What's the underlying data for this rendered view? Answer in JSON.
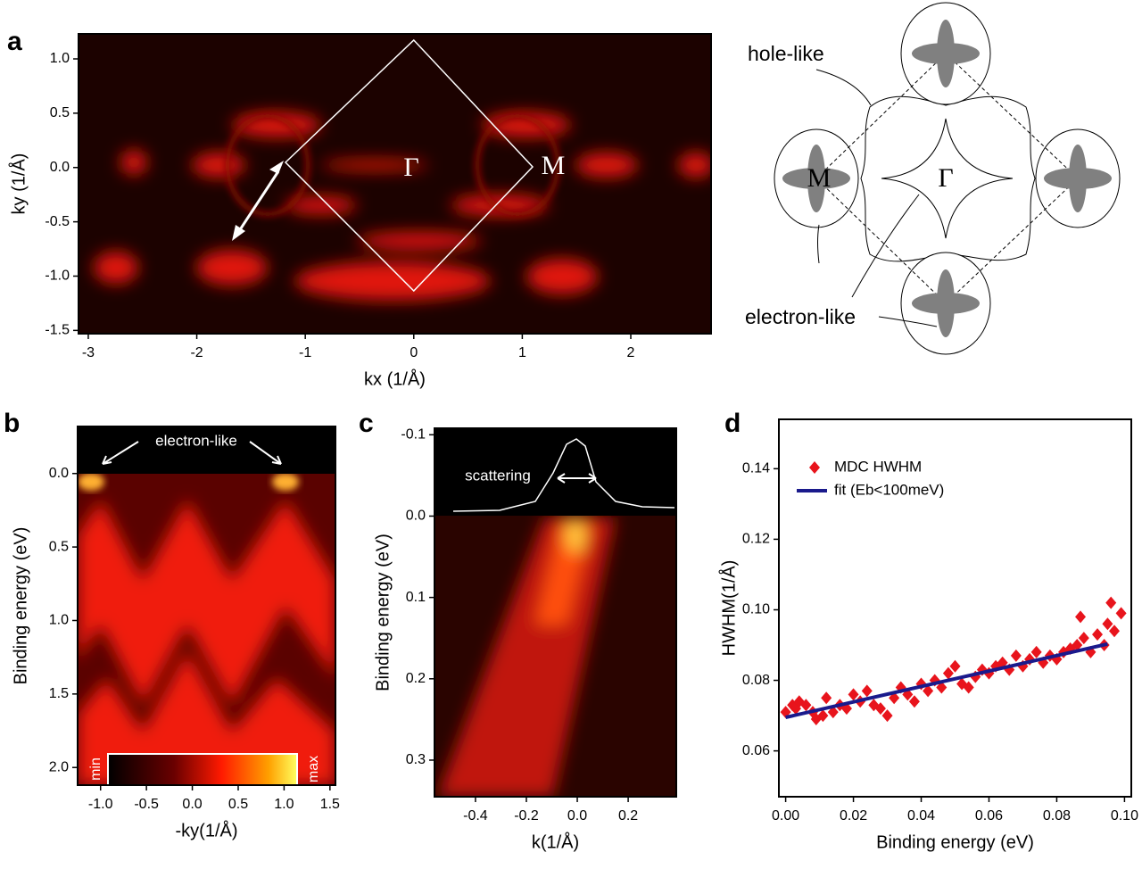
{
  "chart_data": [
    {
      "type": "heatmap",
      "panel_label": "a",
      "xlabel": "kx (1/Å)",
      "ylabel": "ky (1/Å)",
      "xlim": [
        -3.09,
        2.74
      ],
      "ylim": [
        -1.53,
        1.23
      ],
      "xticks": [
        -3,
        -2,
        -1,
        0,
        1,
        2
      ],
      "yticks": [
        {
          "value": 1.0,
          "label": "1.0"
        },
        {
          "value": 0.5,
          "label": "0.5"
        },
        {
          "value": 0.0,
          "label": "0.0"
        },
        {
          "value": -0.5,
          "label": "-0.5"
        },
        {
          "value": -1.0,
          "label": "-1.0"
        },
        {
          "value": -1.5,
          "label": "-1.5"
        }
      ],
      "annotations": [
        "Γ",
        "M"
      ]
    },
    {
      "type": "heatmap",
      "panel_label": "b",
      "xlabel": "-ky(1/Å)",
      "ylabel": "Binding energy (eV)",
      "xlim": [
        -1.25,
        1.56
      ],
      "ylim": [
        2.12,
        -0.32
      ],
      "xticks": [
        {
          "value": -1.0,
          "label": "-1.0"
        },
        {
          "value": -0.5,
          "label": "-0.5"
        },
        {
          "value": 0.0,
          "label": "0.0"
        },
        {
          "value": 0.5,
          "label": "0.5"
        },
        {
          "value": 1.0,
          "label": "1.0"
        },
        {
          "value": 1.5,
          "label": "1.5"
        }
      ],
      "yticks": [
        {
          "value": 0.0,
          "label": "0.0"
        },
        {
          "value": 0.5,
          "label": "0.5"
        },
        {
          "value": 1.0,
          "label": "1.0"
        },
        {
          "value": 1.5,
          "label": "1.5"
        },
        {
          "value": 2.0,
          "label": "2.0"
        }
      ],
      "annotations": [
        "electron-like"
      ],
      "colorbar_labels": [
        "min",
        "max"
      ]
    },
    {
      "type": "heatmap",
      "panel_label": "c",
      "xlabel": "k(1/Å)",
      "ylabel": "Binding energy (eV)",
      "xlim": [
        -0.561,
        0.389
      ],
      "ylim": [
        0.345,
        -0.108
      ],
      "xticks": [
        {
          "value": -0.4,
          "label": "-0.4"
        },
        {
          "value": -0.2,
          "label": "-0.2"
        },
        {
          "value": 0.0,
          "label": "0.0"
        },
        0.2
      ],
      "yticks": [
        -0.1,
        {
          "value": 0.0,
          "label": "0.0"
        },
        0.1,
        0.2,
        0.3
      ],
      "annotations": [
        "scattering"
      ]
    },
    {
      "type": "scatter",
      "panel_label": "d",
      "xlabel": "Binding energy (eV)",
      "ylabel": "HWHM(1/Å)",
      "xlim": [
        -0.002,
        0.102
      ],
      "ylim": [
        0.047,
        0.154
      ],
      "xticks": [
        {
          "value": 0.0,
          "label": "0.00"
        },
        0.02,
        0.04,
        0.06,
        0.08,
        {
          "value": 0.1,
          "label": "0.10"
        }
      ],
      "yticks": [
        0.06,
        0.08,
        {
          "value": 0.1,
          "label": "0.10"
        },
        0.12,
        0.14
      ],
      "legend": "upper left",
      "series": [
        {
          "name": "MDC HWHM",
          "color": "#e8141c",
          "marker": "diamond",
          "x": [
            0.0,
            0.002,
            0.003,
            0.004,
            0.006,
            0.008,
            0.009,
            0.011,
            0.012,
            0.014,
            0.016,
            0.018,
            0.02,
            0.022,
            0.024,
            0.026,
            0.028,
            0.03,
            0.032,
            0.034,
            0.036,
            0.038,
            0.04,
            0.042,
            0.044,
            0.046,
            0.048,
            0.05,
            0.052,
            0.054,
            0.056,
            0.058,
            0.06,
            0.062,
            0.064,
            0.066,
            0.068,
            0.07,
            0.072,
            0.074,
            0.076,
            0.078,
            0.08,
            0.082,
            0.084,
            0.086,
            0.087,
            0.088,
            0.09,
            0.092,
            0.094,
            0.095,
            0.096,
            0.097,
            0.099
          ],
          "values": [
            0.071,
            0.073,
            0.072,
            0.074,
            0.073,
            0.071,
            0.069,
            0.07,
            0.075,
            0.071,
            0.073,
            0.072,
            0.076,
            0.074,
            0.077,
            0.073,
            0.072,
            0.07,
            0.075,
            0.078,
            0.076,
            0.074,
            0.079,
            0.077,
            0.08,
            0.078,
            0.082,
            0.084,
            0.079,
            0.078,
            0.081,
            0.083,
            0.082,
            0.084,
            0.085,
            0.083,
            0.087,
            0.084,
            0.086,
            0.088,
            0.085,
            0.087,
            0.086,
            0.088,
            0.089,
            0.09,
            0.098,
            0.092,
            0.088,
            0.093,
            0.09,
            0.096,
            0.102,
            0.094,
            0.099
          ]
        },
        {
          "name": "fit (Eb<100meV)",
          "color": "#1a1a8c",
          "marker": "line",
          "x": [
            0.0,
            0.095
          ],
          "values": [
            0.0695,
            0.0903
          ]
        }
      ]
    }
  ],
  "schematic": {
    "labels": [
      "hole-like",
      "electron-like",
      "Γ",
      "M"
    ]
  }
}
